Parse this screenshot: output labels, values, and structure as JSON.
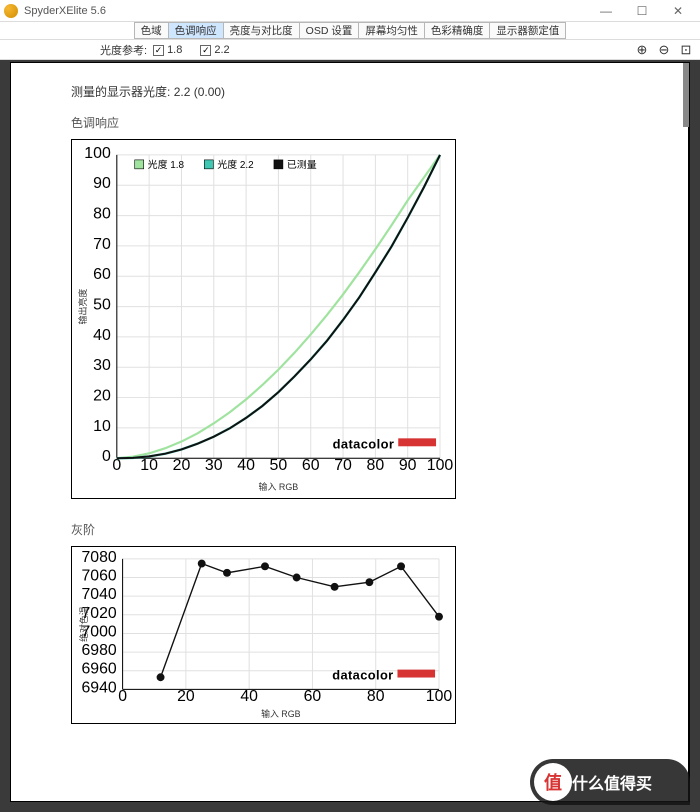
{
  "window": {
    "title": "SpyderXElite 5.6"
  },
  "tabs": {
    "items": [
      "色域",
      "色调响应",
      "亮度与对比度",
      "OSD 设置",
      "屏幕均匀性",
      "色彩精确度",
      "显示器额定值"
    ],
    "active_index": 1
  },
  "ref_bar": {
    "label": "光度参考:",
    "options": [
      {
        "value": "1.8",
        "checked": true
      },
      {
        "value": "2.2",
        "checked": true
      }
    ]
  },
  "measured_line": {
    "label": "测量的显示器光度:",
    "value": "2.2 (0.00)"
  },
  "tone_chart": {
    "section_title": "色调响应",
    "type": "line",
    "xlabel": "输入  RGB",
    "ylabel": "输出亮度",
    "xlim": [
      0,
      100
    ],
    "ylim": [
      0,
      100
    ],
    "tick_step": 10,
    "grid_color": "#e0e0e0",
    "background_color": "#ffffff",
    "legend": [
      {
        "label": "光度 1.8",
        "color": "#9fe39f"
      },
      {
        "label": "光度 2.2",
        "color": "#3fc7b3"
      },
      {
        "label": "已测量",
        "color": "#111111"
      }
    ],
    "series": {
      "gamma18": {
        "color": "#9fe39f",
        "width": 2.2,
        "x": [
          0,
          5,
          10,
          15,
          20,
          25,
          30,
          35,
          40,
          45,
          50,
          55,
          60,
          65,
          70,
          75,
          80,
          85,
          90,
          95,
          100
        ],
        "y": [
          0,
          0.5,
          1.6,
          3.3,
          5.5,
          8.2,
          11.5,
          15.2,
          19.4,
          24.1,
          29.2,
          34.8,
          40.8,
          47.2,
          54.0,
          61.3,
          68.9,
          76.8,
          85.0,
          92.5,
          100
        ]
      },
      "gamma22": {
        "color": "#3fc7b3",
        "width": 2.4,
        "x": [
          0,
          5,
          10,
          15,
          20,
          25,
          30,
          35,
          40,
          45,
          50,
          55,
          60,
          65,
          70,
          75,
          80,
          85,
          90,
          95,
          100
        ],
        "y": [
          0,
          0.1,
          0.6,
          1.5,
          2.9,
          4.8,
          7.1,
          9.9,
          13.3,
          17.2,
          21.8,
          27.0,
          32.6,
          38.7,
          45.6,
          53.0,
          61.3,
          69.8,
          79.3,
          89.3,
          100
        ]
      },
      "measured": {
        "color": "#111111",
        "width": 2.0,
        "x": [
          0,
          5,
          10,
          15,
          20,
          25,
          30,
          35,
          40,
          45,
          50,
          55,
          60,
          65,
          70,
          75,
          80,
          85,
          90,
          95,
          100
        ],
        "y": [
          0,
          0.1,
          0.6,
          1.5,
          2.9,
          4.8,
          7.1,
          9.9,
          13.3,
          17.2,
          21.8,
          27.0,
          32.6,
          38.7,
          45.6,
          53.0,
          61.3,
          69.8,
          79.3,
          89.3,
          100
        ]
      }
    },
    "brand": "datacolor"
  },
  "gray_chart": {
    "section_title": "灰阶",
    "type": "line-marker",
    "xlabel": "输入  RGB",
    "ylabel": "绝对色温",
    "xlim": [
      0,
      100
    ],
    "ylim": [
      6940,
      7080
    ],
    "xtick_step": 20,
    "ytick_step": 20,
    "grid_color": "#e0e0e0",
    "background_color": "#ffffff",
    "series": {
      "kelvin": {
        "color": "#111111",
        "width": 1.4,
        "marker_size": 4,
        "x": [
          12,
          25,
          33,
          45,
          55,
          67,
          78,
          88,
          100
        ],
        "y": [
          6953,
          7075,
          7065,
          7072,
          7060,
          7050,
          7055,
          7072,
          7018
        ]
      }
    },
    "brand": "datacolor"
  },
  "watermark": {
    "circle_text": "值",
    "text": "什么值得买"
  },
  "colors": {
    "window_bg": "#3a3a3a",
    "panel_bg": "#ffffff",
    "tab_active_bg": "#cfe6ff",
    "brand_bar": "#d73333"
  }
}
